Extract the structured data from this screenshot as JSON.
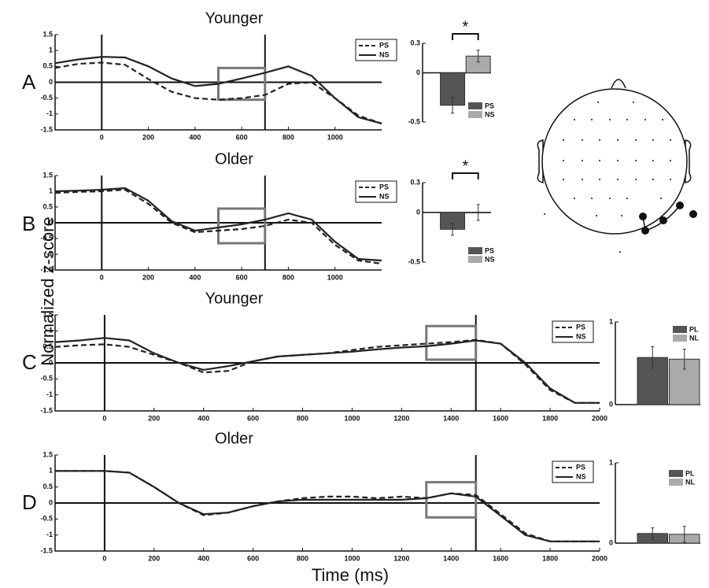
{
  "panel_labels": [
    "A",
    "B",
    "C",
    "D"
  ],
  "y_label": "Normalized z-score",
  "x_label": "Time (ms)",
  "chart_data": [
    {
      "type": "line",
      "title": "Younger",
      "x": [
        -200,
        -100,
        0,
        100,
        200,
        300,
        400,
        500,
        600,
        700,
        800,
        900,
        1000,
        1100,
        1200
      ],
      "series": [
        {
          "name": "PS",
          "color": "#222222",
          "dashed": true,
          "values": [
            0.45,
            0.58,
            0.62,
            0.55,
            0.1,
            -0.3,
            -0.5,
            -0.55,
            -0.5,
            -0.4,
            -0.05,
            0.0,
            -0.5,
            -1.05,
            -1.3
          ]
        },
        {
          "name": "NS",
          "color": "#222222",
          "dashed": false,
          "values": [
            0.6,
            0.72,
            0.8,
            0.78,
            0.5,
            0.12,
            -0.12,
            -0.05,
            0.12,
            0.3,
            0.5,
            0.2,
            -0.5,
            -1.1,
            -1.3
          ]
        }
      ],
      "xlim": [
        -200,
        1200
      ],
      "ylim": [
        -1.5,
        1.5
      ],
      "xticks": [
        0,
        200,
        400,
        600,
        800,
        1000
      ],
      "yticks": [
        -1.5,
        -1,
        -0.5,
        0,
        0.5,
        1,
        1.5
      ],
      "markers": [
        0,
        700
      ],
      "window": {
        "x": [
          500,
          700
        ],
        "y": [
          -0.55,
          0.45
        ]
      }
    },
    {
      "type": "line",
      "title": "Older",
      "x": [
        -200,
        -100,
        0,
        100,
        200,
        300,
        400,
        500,
        600,
        700,
        800,
        900,
        1000,
        1100,
        1200
      ],
      "series": [
        {
          "name": "PS",
          "color": "#222222",
          "dashed": true,
          "values": [
            0.95,
            0.98,
            1.0,
            1.05,
            0.6,
            0.0,
            -0.3,
            -0.25,
            -0.2,
            -0.1,
            0.1,
            0.0,
            -0.7,
            -1.2,
            -1.3
          ]
        },
        {
          "name": "NS",
          "color": "#222222",
          "dashed": false,
          "values": [
            1.0,
            1.02,
            1.05,
            1.1,
            0.7,
            0.05,
            -0.25,
            -0.15,
            -0.05,
            0.1,
            0.3,
            0.1,
            -0.6,
            -1.15,
            -1.2
          ]
        }
      ],
      "xlim": [
        -200,
        1200
      ],
      "ylim": [
        -1.5,
        1.5
      ],
      "xticks": [
        0,
        200,
        400,
        600,
        800,
        1000
      ],
      "yticks": [
        -1.5,
        -1,
        -0.5,
        0,
        0.5,
        1,
        1.5
      ],
      "markers": [
        0,
        700
      ],
      "window": {
        "x": [
          500,
          700
        ],
        "y": [
          -0.65,
          0.45
        ]
      }
    },
    {
      "type": "line",
      "title": "Younger",
      "x": [
        -200,
        -100,
        0,
        100,
        200,
        300,
        400,
        500,
        600,
        700,
        800,
        900,
        1000,
        1100,
        1200,
        1300,
        1400,
        1500,
        1600,
        1700,
        1800,
        1900,
        2000
      ],
      "series": [
        {
          "name": "PS",
          "color": "#222222",
          "dashed": true,
          "values": [
            0.5,
            0.55,
            0.58,
            0.5,
            0.25,
            0.0,
            -0.3,
            -0.25,
            0.05,
            0.2,
            0.25,
            0.3,
            0.4,
            0.5,
            0.55,
            0.6,
            0.65,
            0.72,
            0.6,
            -0.05,
            -0.85,
            -1.25,
            -1.25
          ]
        },
        {
          "name": "NS",
          "color": "#222222",
          "dashed": false,
          "values": [
            0.65,
            0.7,
            0.78,
            0.7,
            0.3,
            0.0,
            -0.22,
            -0.1,
            0.05,
            0.2,
            0.25,
            0.3,
            0.35,
            0.42,
            0.48,
            0.52,
            0.6,
            0.7,
            0.6,
            0.0,
            -0.8,
            -1.25,
            -1.25
          ]
        }
      ],
      "xlim": [
        -200,
        2000
      ],
      "ylim": [
        -1.5,
        1.5
      ],
      "xticks": [
        0,
        200,
        400,
        600,
        800,
        1000,
        1200,
        1400,
        1600,
        1800,
        2000
      ],
      "yticks": [
        -1.5,
        -1,
        -0.5,
        0,
        0.5,
        1,
        1.5
      ],
      "markers": [
        0,
        1500
      ],
      "window": {
        "x": [
          1300,
          1500
        ],
        "y": [
          0.1,
          1.15
        ]
      }
    },
    {
      "type": "line",
      "title": "Older",
      "x": [
        -200,
        -100,
        0,
        100,
        200,
        300,
        400,
        500,
        600,
        700,
        800,
        900,
        1000,
        1100,
        1200,
        1300,
        1400,
        1500,
        1600,
        1700,
        1800,
        1900,
        2000
      ],
      "series": [
        {
          "name": "PS",
          "color": "#222222",
          "dashed": true,
          "values": [
            1.0,
            1.0,
            1.0,
            0.95,
            0.5,
            0.0,
            -0.38,
            -0.3,
            -0.1,
            0.05,
            0.15,
            0.2,
            0.2,
            0.15,
            0.2,
            0.15,
            0.3,
            0.25,
            -0.35,
            -0.95,
            -1.2,
            -1.2,
            -1.2
          ]
        },
        {
          "name": "NS",
          "color": "#222222",
          "dashed": false,
          "values": [
            1.0,
            1.0,
            1.0,
            0.95,
            0.5,
            0.0,
            -0.35,
            -0.3,
            -0.1,
            0.05,
            0.1,
            0.1,
            0.1,
            0.1,
            0.1,
            0.15,
            0.3,
            0.2,
            -0.4,
            -1.0,
            -1.2,
            -1.2,
            -1.2
          ]
        }
      ],
      "xlim": [
        -200,
        2000
      ],
      "ylim": [
        -1.5,
        1.5
      ],
      "xticks": [
        0,
        200,
        400,
        600,
        800,
        1000,
        1200,
        1400,
        1600,
        1800,
        2000
      ],
      "yticks": [
        -1.5,
        -1,
        -0.5,
        0,
        0.5,
        1,
        1.5
      ],
      "markers": [
        0,
        1500
      ],
      "window": {
        "x": [
          1300,
          1500
        ],
        "y": [
          -0.45,
          0.65
        ]
      }
    },
    {
      "type": "bar",
      "categories": [
        "PS",
        "NS"
      ],
      "values": [
        -0.33,
        0.17
      ],
      "errors": [
        0.08,
        0.06
      ],
      "colors": [
        "#555555",
        "#aaaaaa"
      ],
      "ylim": [
        -0.5,
        0.3
      ],
      "yticks": [
        -0.5,
        0,
        0.3
      ],
      "annotation": "*"
    },
    {
      "type": "bar",
      "categories": [
        "PS",
        "NS"
      ],
      "values": [
        -0.17,
        0.0
      ],
      "errors": [
        0.06,
        0.08
      ],
      "colors": [
        "#555555",
        "#aaaaaa"
      ],
      "ylim": [
        -0.5,
        0.3
      ],
      "yticks": [
        -0.5,
        0,
        0.3
      ],
      "annotation": "*"
    },
    {
      "type": "bar",
      "categories": [
        "PL",
        "NL"
      ],
      "values": [
        0.57,
        0.55
      ],
      "errors": [
        0.13,
        0.12
      ],
      "colors": [
        "#555555",
        "#aaaaaa"
      ],
      "ylim": [
        0,
        1
      ],
      "yticks": [
        0,
        1
      ]
    },
    {
      "type": "bar",
      "categories": [
        "PL",
        "NL"
      ],
      "values": [
        0.12,
        0.11
      ],
      "errors": [
        0.07,
        0.1
      ],
      "colors": [
        "#555555",
        "#aaaaaa"
      ],
      "ylim": [
        0,
        1
      ],
      "yticks": [
        0,
        1
      ]
    }
  ]
}
